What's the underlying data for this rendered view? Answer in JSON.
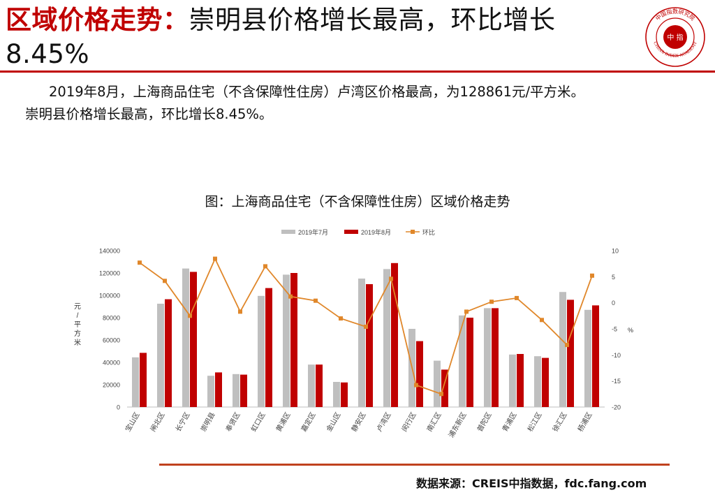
{
  "header": {
    "title_highlight": "区域价格走势：",
    "title_rest": "崇明县价格增长最高，环比增长8.45%",
    "logo_center_text": "中 指",
    "logo_ring_text_cn": "中国指数研究院",
    "logo_ring_text_en": "CHINA INDEX ACADEMY"
  },
  "body": {
    "para1": "2019年8月，上海商品住宅（不含保障性住房）卢湾区价格最高，为128861元/平方米。",
    "para2": "崇明县价格增长最高，环比增长8.45%。"
  },
  "chart_data": {
    "type": "bar",
    "title": "图：上海商品住宅（不含保障性住房）区域价格走势",
    "categories": [
      "宝山区",
      "闸北区",
      "长宁区",
      "崇明县",
      "奉贤区",
      "虹口区",
      "黄浦区",
      "嘉定区",
      "金山区",
      "静安区",
      "卢湾区",
      "闵行区",
      "南汇区",
      "浦东新区",
      "普陀区",
      "青浦区",
      "松江区",
      "徐汇区",
      "杨浦区"
    ],
    "series": [
      {
        "name": "2019年7月",
        "kind": "bar",
        "axis": "left",
        "color": "#bfbfbf",
        "values": [
          44500,
          92500,
          124000,
          28000,
          29500,
          99500,
          118500,
          38000,
          22500,
          115000,
          123500,
          70000,
          41500,
          82000,
          88500,
          47000,
          45500,
          103000,
          87000
        ]
      },
      {
        "name": "2019年8月",
        "kind": "bar",
        "axis": "left",
        "color": "#c00000",
        "values": [
          48500,
          96500,
          121000,
          31000,
          29000,
          106500,
          120000,
          38000,
          22000,
          110000,
          128861,
          59000,
          33500,
          80000,
          88500,
          47500,
          44000,
          96000,
          91000
        ]
      },
      {
        "name": "环比",
        "kind": "line",
        "axis": "right",
        "color": "#e0872a",
        "values": [
          7.7,
          4.2,
          -2.5,
          8.45,
          -1.7,
          7.0,
          1.2,
          0.4,
          -3.0,
          -4.6,
          4.6,
          -15.8,
          -17.5,
          -1.7,
          0.2,
          0.9,
          -3.3,
          -8.1,
          5.2
        ]
      }
    ],
    "ylabel": "元/平方米",
    "y2label": "%",
    "ylim": [
      0,
      140000
    ],
    "yticks": [
      0,
      20000,
      40000,
      60000,
      80000,
      100000,
      120000,
      140000
    ],
    "y2lim": [
      -20,
      10
    ],
    "y2ticks": [
      -20,
      -15,
      -10,
      -5,
      0,
      5,
      10
    ],
    "legend_position": "top-center",
    "grid": false
  },
  "footer": {
    "source": "数据来源：CREIS中指数据，fdc.fang.com"
  }
}
